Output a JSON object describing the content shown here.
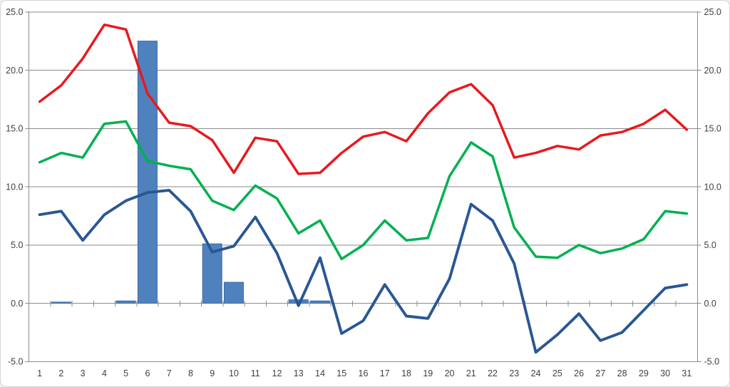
{
  "window": {
    "background": "#ffffff",
    "border_color": "#d6d6d6"
  },
  "chart_data": {
    "type": "combo",
    "grid": true,
    "legend": false,
    "grid_color": "#8a8a8a",
    "axis_color": "#8a8a8a",
    "text_color": "#3f3f3f",
    "categories": [
      "1",
      "2",
      "3",
      "4",
      "5",
      "6",
      "7",
      "8",
      "9",
      "10",
      "11",
      "12",
      "13",
      "14",
      "15",
      "16",
      "17",
      "18",
      "19",
      "20",
      "21",
      "22",
      "23",
      "24",
      "25",
      "26",
      "27",
      "28",
      "29",
      "30",
      "31"
    ],
    "y_axis": {
      "min": -5.0,
      "max": 25.0,
      "step": 5.0,
      "sides": [
        "left",
        "right"
      ],
      "tick_labels": [
        "25.0",
        "20.0",
        "15.0",
        "10.0",
        "5.0",
        "0.0",
        "-5.0"
      ],
      "tick_values": [
        25,
        20,
        15,
        10,
        5,
        0,
        -5
      ]
    },
    "series": [
      {
        "name": "blue-bars",
        "type": "bar",
        "color": "#4f81bd",
        "border_color": "#3b6ca5",
        "values": [
          0,
          0.1,
          0,
          0,
          0.2,
          22.5,
          0,
          0,
          5.1,
          1.8,
          0,
          0,
          0.3,
          0.2,
          0,
          0,
          0,
          0,
          0,
          0,
          0,
          0,
          0,
          0,
          0,
          0,
          0,
          0,
          0,
          0,
          0
        ]
      },
      {
        "name": "red-line",
        "type": "line",
        "color": "#e8191e",
        "values": [
          17.3,
          18.7,
          21.0,
          23.9,
          23.5,
          18.0,
          15.5,
          15.2,
          14.0,
          11.2,
          14.2,
          13.9,
          11.1,
          11.2,
          12.9,
          14.3,
          14.7,
          13.9,
          16.3,
          18.1,
          18.8,
          17.0,
          12.5,
          12.9,
          13.5,
          13.2,
          14.4,
          14.7,
          15.4,
          16.6,
          14.9
        ]
      },
      {
        "name": "green-line",
        "type": "line",
        "color": "#00b050",
        "values": [
          12.1,
          12.9,
          12.5,
          15.4,
          15.6,
          12.2,
          11.8,
          11.5,
          8.8,
          8.0,
          10.1,
          9.0,
          6.0,
          7.1,
          3.8,
          5.0,
          7.1,
          5.4,
          5.6,
          10.9,
          13.8,
          12.6,
          6.5,
          4.0,
          3.9,
          5.0,
          4.3,
          4.7,
          5.5,
          7.9,
          7.7
        ]
      },
      {
        "name": "navy-line",
        "type": "line",
        "color": "#2a5794",
        "values": [
          7.6,
          7.9,
          5.4,
          7.6,
          8.8,
          9.5,
          9.7,
          7.9,
          4.4,
          4.9,
          7.4,
          4.3,
          -0.2,
          3.9,
          -2.6,
          -1.5,
          1.6,
          -1.1,
          -1.3,
          2.1,
          8.5,
          7.1,
          3.4,
          -4.2,
          -2.7,
          -0.9,
          -3.2,
          -2.5,
          -0.6,
          1.3,
          1.6
        ]
      }
    ]
  }
}
